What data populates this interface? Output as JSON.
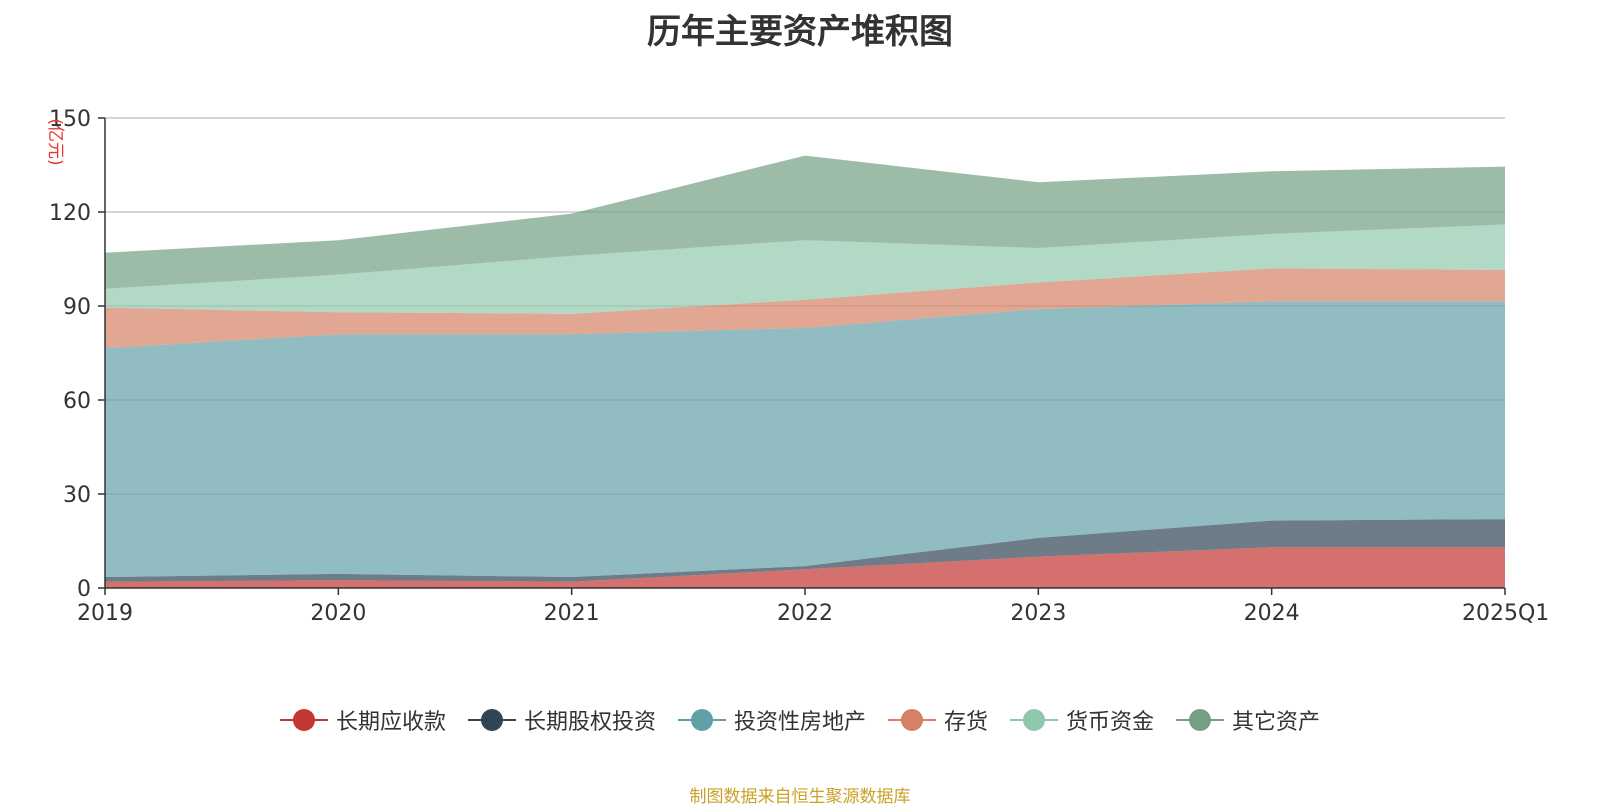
{
  "chart_data": {
    "type": "area",
    "stacked": true,
    "title": "历年主要资产堆积图",
    "ylabel": "(亿元)",
    "xlabel": "",
    "categories": [
      "2019",
      "2020",
      "2021",
      "2022",
      "2023",
      "2024",
      "2025Q1"
    ],
    "ylim": [
      0,
      150
    ],
    "yticks": [
      0,
      30,
      60,
      90,
      120,
      150
    ],
    "grid": true,
    "legend_position": "bottom",
    "series": [
      {
        "name": "长期应收款",
        "color": "#c23531",
        "values": [
          2,
          2.5,
          2,
          6,
          10,
          13,
          13
        ]
      },
      {
        "name": "长期股权投资",
        "color": "#2f4554",
        "values": [
          1.5,
          2,
          1.5,
          1,
          6,
          8.5,
          9
        ]
      },
      {
        "name": "投资性房地产",
        "color": "#61a0a8",
        "values": [
          73,
          76.5,
          77.5,
          76,
          73,
          70,
          69.5
        ]
      },
      {
        "name": "存货",
        "color": "#d48265",
        "values": [
          13,
          7,
          6.5,
          9,
          8.5,
          10.5,
          10
        ]
      },
      {
        "name": "货币资金",
        "color": "#91c7ae",
        "values": [
          6,
          12,
          18.5,
          19,
          11,
          11,
          14.5
        ]
      },
      {
        "name": "其它资产",
        "color": "#749f83",
        "values": [
          11.5,
          11,
          13.5,
          27,
          21,
          20,
          18.5
        ]
      }
    ]
  },
  "source_note": "制图数据来自恒生聚源数据库"
}
